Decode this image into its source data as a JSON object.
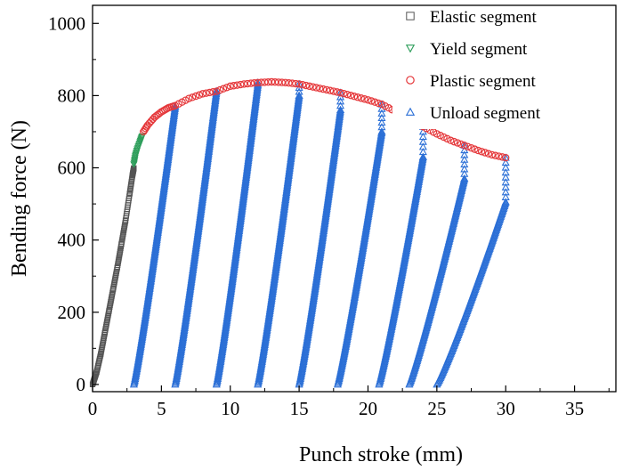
{
  "chart_data": {
    "type": "scatter",
    "xlabel": "Punch  stroke (mm)",
    "ylabel": "Bending force (N)",
    "xlim": [
      0,
      38
    ],
    "ylim": [
      -20,
      1050
    ],
    "xticks": [
      0,
      5,
      10,
      15,
      20,
      25,
      30,
      35
    ],
    "yticks": [
      0,
      200,
      400,
      600,
      800,
      1000
    ],
    "grid": false,
    "legend_position": "top-right",
    "series": [
      {
        "name": "Elastic segment",
        "marker": "square",
        "color": "#555555",
        "points": [
          [
            0,
            0
          ],
          [
            0.3,
            35
          ],
          [
            0.6,
            85
          ],
          [
            0.9,
            145
          ],
          [
            1.2,
            205
          ],
          [
            1.5,
            265
          ],
          [
            1.8,
            325
          ],
          [
            2.1,
            390
          ],
          [
            2.4,
            455
          ],
          [
            2.7,
            530
          ],
          [
            2.9,
            580
          ],
          [
            3.0,
            600
          ]
        ]
      },
      {
        "name": "Yield segment",
        "marker": "triangle-down",
        "color": "#2e9e5b",
        "points": [
          [
            3.0,
            610
          ],
          [
            3.1,
            632
          ],
          [
            3.25,
            652
          ],
          [
            3.45,
            672
          ],
          [
            3.6,
            688
          ]
        ]
      },
      {
        "name": "Plastic segment",
        "marker": "circle",
        "color": "#e5383b",
        "points": [
          [
            3.7,
            700
          ],
          [
            4.0,
            718
          ],
          [
            4.5,
            740
          ],
          [
            5.0,
            755
          ],
          [
            5.5,
            766
          ],
          [
            6.0,
            772
          ],
          [
            7.0,
            792
          ],
          [
            8.0,
            805
          ],
          [
            9.0,
            812
          ],
          [
            10.0,
            826
          ],
          [
            11.0,
            832
          ],
          [
            12.0,
            836
          ],
          [
            13.0,
            838
          ],
          [
            14.0,
            836
          ],
          [
            15.0,
            832
          ],
          [
            16.0,
            824
          ],
          [
            17.0,
            816
          ],
          [
            18.0,
            808
          ],
          [
            19.0,
            798
          ],
          [
            20.0,
            788
          ],
          [
            21.0,
            776
          ],
          [
            22.0,
            756
          ],
          [
            23.0,
            736
          ],
          [
            24.0,
            714
          ],
          [
            25.0,
            694
          ],
          [
            26.0,
            676
          ],
          [
            27.0,
            662
          ],
          [
            28.0,
            648
          ],
          [
            29.0,
            636
          ],
          [
            30.0,
            628
          ]
        ]
      },
      {
        "name": "Unload segment",
        "marker": "triangle-up",
        "color": "#2b6fd6",
        "unload_cycles": [
          {
            "top": [
              6,
              770
            ],
            "bottom": [
              6,
              770
            ],
            "base": [
              3.0,
              0
            ]
          },
          {
            "top": [
              9,
              812
            ],
            "bottom": [
              9,
              812
            ],
            "base": [
              6.0,
              0
            ]
          },
          {
            "top": [
              12,
              836
            ],
            "bottom": [
              12,
              830
            ],
            "base": [
              9.0,
              0
            ]
          },
          {
            "top": [
              15,
              832
            ],
            "bottom": [
              15,
              800
            ],
            "base": [
              12.0,
              0
            ]
          },
          {
            "top": [
              18,
              808
            ],
            "bottom": [
              18,
              760
            ],
            "base": [
              15.0,
              0
            ]
          },
          {
            "top": [
              21,
              776
            ],
            "bottom": [
              21,
              700
            ],
            "base": [
              17.8,
              0
            ]
          },
          {
            "top": [
              24,
              714
            ],
            "bottom": [
              24,
              630
            ],
            "base": [
              20.8,
              0
            ]
          },
          {
            "top": [
              27,
              662
            ],
            "bottom": [
              27,
              570
            ],
            "base": [
              23.0,
              0
            ]
          },
          {
            "top": [
              30,
              628
            ],
            "bottom": [
              30,
              505
            ],
            "base": [
              25.0,
              0
            ]
          }
        ]
      }
    ]
  }
}
